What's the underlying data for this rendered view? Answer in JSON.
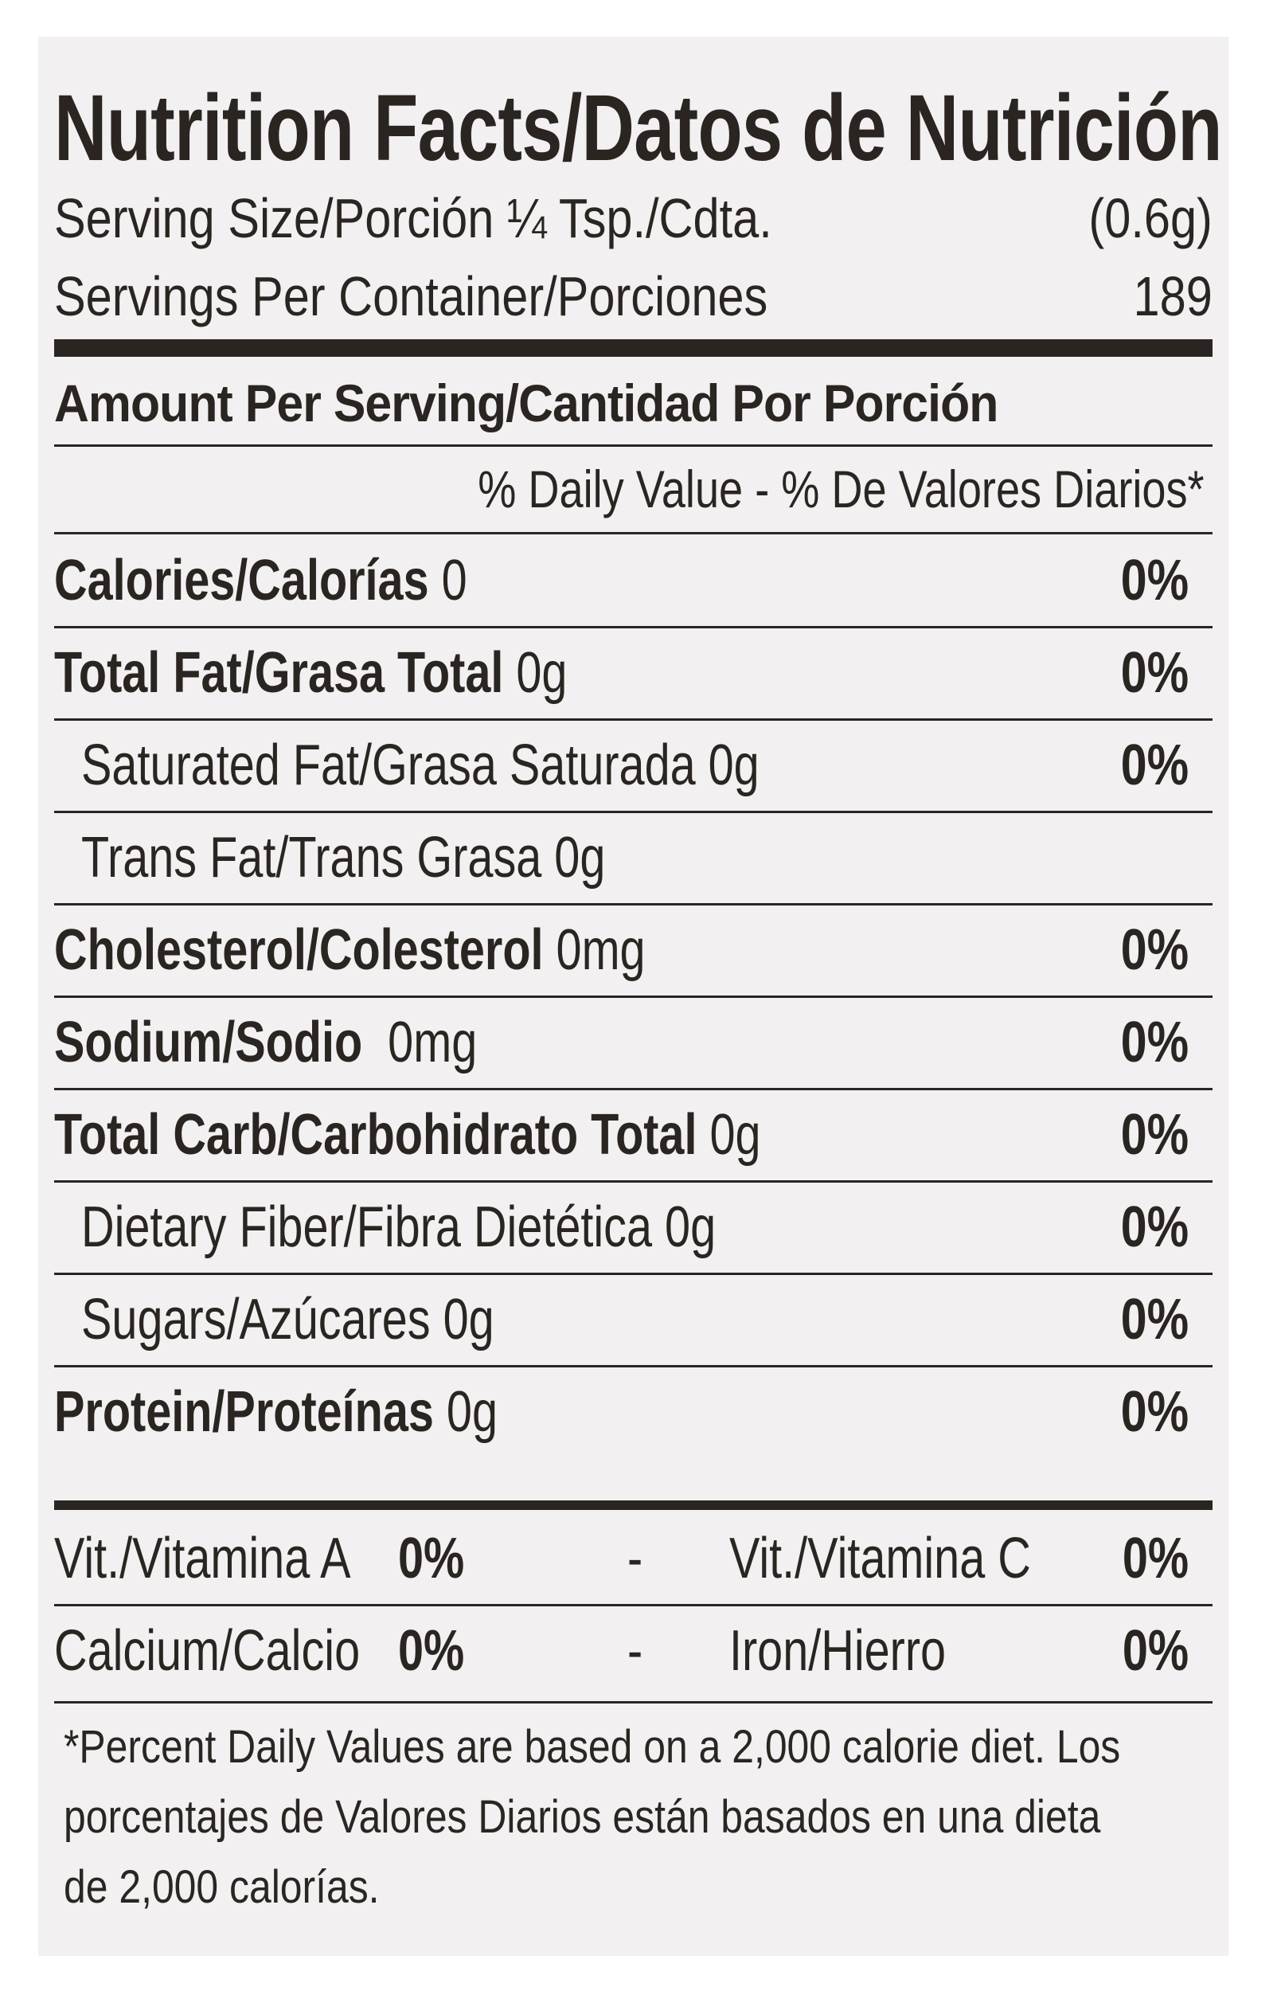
{
  "header": {
    "title": "Nutrition Facts/Datos de Nutrición",
    "serving_size_label": "Serving Size/Porción ¼ Tsp./Cdta.",
    "serving_size_value": "(0.6g)",
    "servings_label": "Servings Per Container/Porciones",
    "servings_value": "189"
  },
  "amount_per_serving": "Amount Per Serving/Cantidad Por Porción",
  "daily_value_heading": "% Daily Value - % De Valores Diarios*",
  "nutrients": [
    {
      "name": "Calories/Calorías",
      "amount": " 0",
      "dv": "0%",
      "bold": true,
      "indent": false
    },
    {
      "name": "Total Fat/Grasa Total",
      "amount": " 0g",
      "dv": "0%",
      "bold": true,
      "indent": false
    },
    {
      "name": "Saturated Fat/Grasa Saturada",
      "amount": " 0g",
      "dv": "0%",
      "bold": false,
      "indent": true
    },
    {
      "name": "Trans Fat/Trans Grasa",
      "amount": " 0g",
      "dv": "",
      "bold": false,
      "indent": true
    },
    {
      "name": "Cholesterol/Colesterol",
      "amount": " 0mg",
      "dv": "0%",
      "bold": true,
      "indent": false
    },
    {
      "name": "Sodium/Sodio",
      "amount": "  0mg",
      "dv": "0%",
      "bold": true,
      "indent": false
    },
    {
      "name": "Total Carb/Carbohidrato Total",
      "amount": " 0g",
      "dv": "0%",
      "bold": true,
      "indent": false
    },
    {
      "name": "Dietary Fiber/Fibra Dietética",
      "amount": " 0g",
      "dv": "0%",
      "bold": false,
      "indent": true
    },
    {
      "name": "Sugars/Azúcares",
      "amount": " 0g",
      "dv": "0%",
      "bold": false,
      "indent": true
    },
    {
      "name": "Protein/Proteínas",
      "amount": " 0g",
      "dv": "0%",
      "bold": true,
      "indent": false
    }
  ],
  "vitamins": [
    {
      "left_label": "Vit./Vitamina A",
      "left_value": "0%",
      "sep": "-",
      "right_label": "Vit./Vitamina C",
      "right_value": "0%"
    },
    {
      "left_label": "Calcium/Calcio",
      "left_value": "0%",
      "sep": "-",
      "right_label": "Iron/Hierro",
      "right_value": "0%"
    }
  ],
  "footnote": {
    "line1": "*Percent Daily Values are based on a 2,000 calorie diet. Los",
    "line2": "porcentajes de Valores Diarios están basados en una dieta",
    "line3": "de 2,000 calorías."
  }
}
